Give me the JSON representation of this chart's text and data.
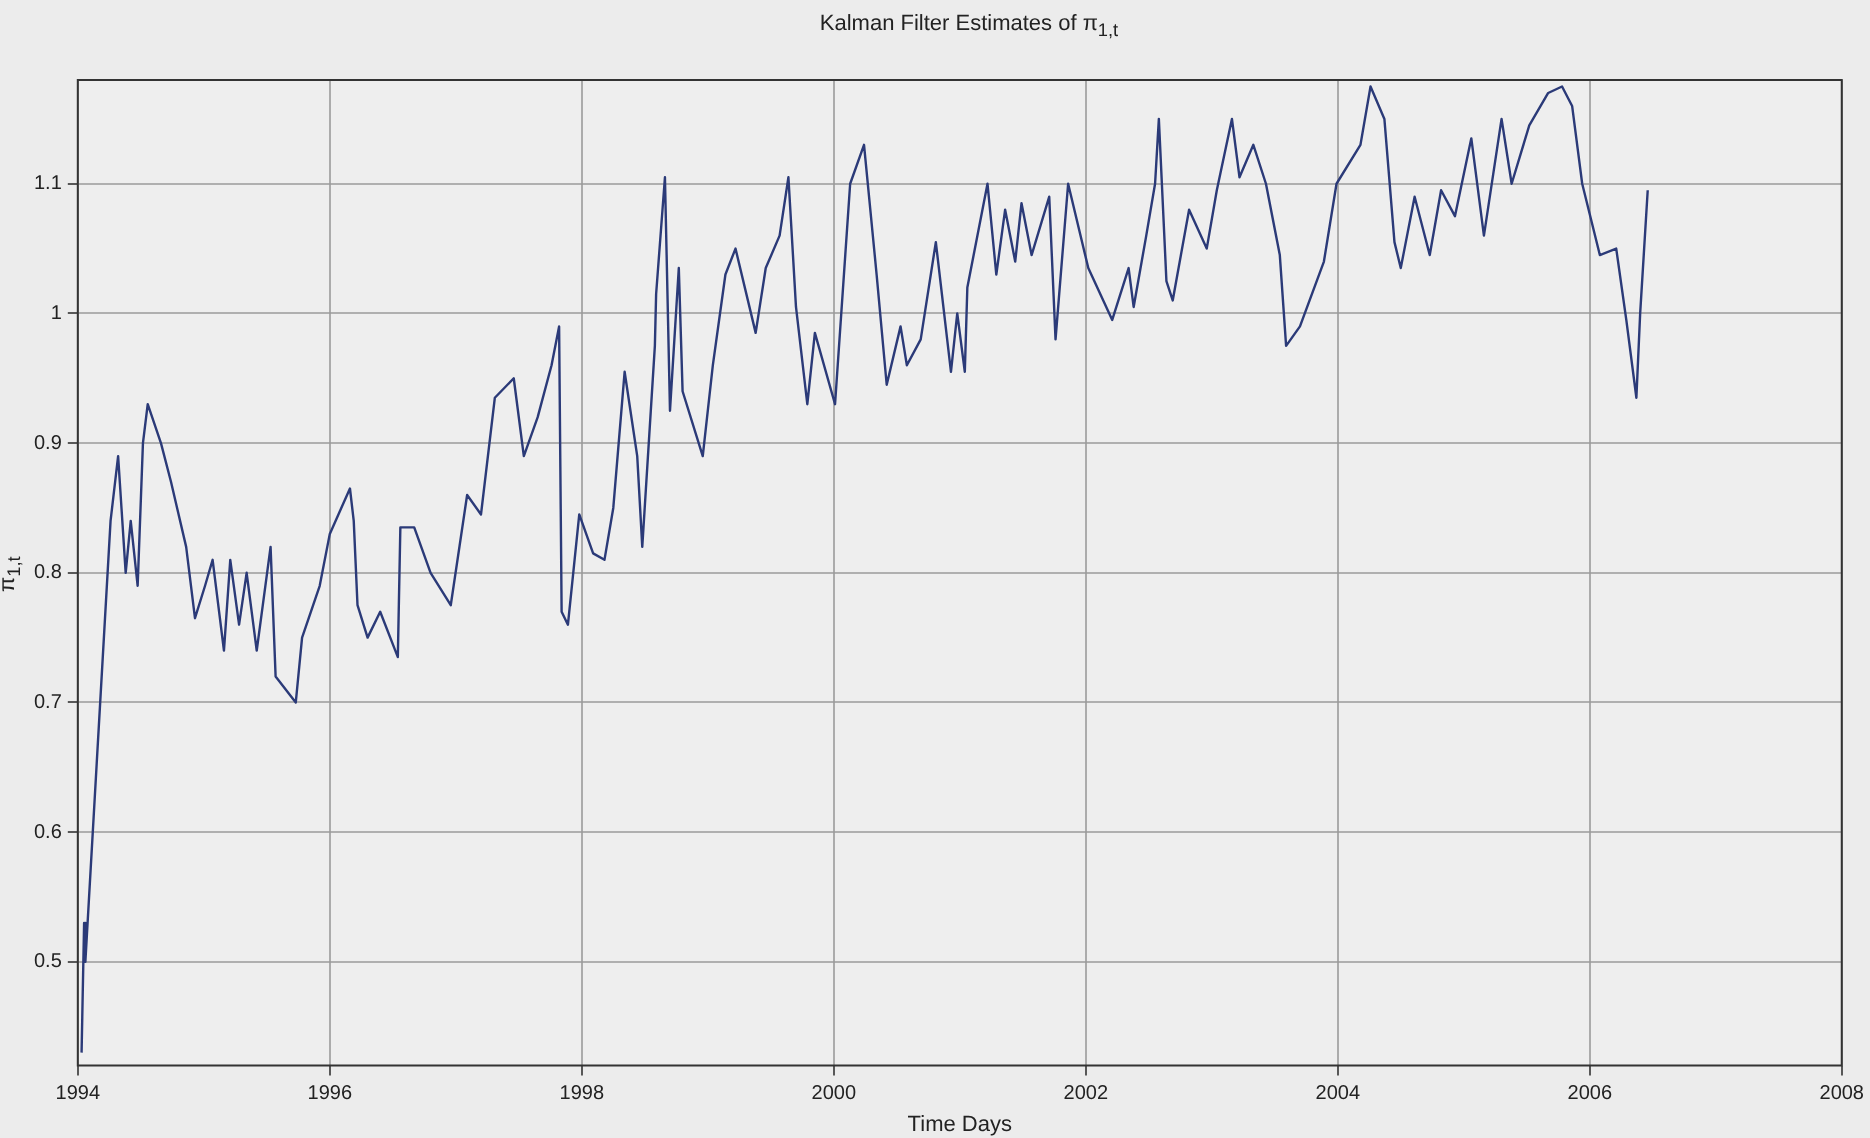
{
  "chart_data": {
    "type": "line",
    "title": "Kalman Filter Estimates of π$_{1,t}$",
    "xlabel": "Time Days",
    "ylabel": "π$_{1,t}$",
    "xlim": [
      1994,
      2008
    ],
    "xticks": [
      1994,
      1996,
      1998,
      2000,
      2002,
      2004,
      2006,
      2008
    ],
    "ylim": [
      0.42,
      1.18
    ],
    "yticks": [
      0.5,
      0.6,
      0.7,
      0.8,
      0.9,
      1,
      1.1
    ],
    "grid": true,
    "marker": "none",
    "line_style": "solid",
    "series": [
      {
        "color": "#2b3a78",
        "x": [
          1994.03,
          1994.05,
          1994.06,
          1994.26,
          1994.32,
          1994.38,
          1994.42,
          1994.475,
          1994.517,
          1994.555,
          1994.66,
          1994.74,
          1994.86,
          1994.93,
          1995.01,
          1995.07,
          1995.16,
          1995.21,
          1995.28,
          1995.34,
          1995.42,
          1995.53,
          1995.57,
          1995.73,
          1995.78,
          1995.92,
          1996.0,
          1996.16,
          1996.19,
          1996.22,
          1996.3,
          1996.4,
          1996.54,
          1996.56,
          1996.67,
          1996.8,
          1996.96,
          1997.09,
          1997.2,
          1997.31,
          1997.46,
          1997.54,
          1997.65,
          1997.76,
          1997.82,
          1997.84,
          1997.89,
          1997.98,
          1998.09,
          1998.18,
          1998.25,
          1998.34,
          1998.44,
          1998.48,
          1998.58,
          1998.59,
          1998.66,
          1998.7,
          1998.77,
          1998.8,
          1998.96,
          1999.04,
          1999.14,
          1999.22,
          1999.38,
          1999.46,
          1999.57,
          1999.64,
          1999.7,
          1999.79,
          1999.85,
          2000.01,
          2000.13,
          2000.24,
          2000.34,
          2000.42,
          2000.53,
          2000.58,
          2000.69,
          2000.81,
          2000.93,
          2000.98,
          2001.04,
          2001.06,
          2001.22,
          2001.29,
          2001.36,
          2001.44,
          2001.49,
          2001.57,
          2001.71,
          2001.76,
          2001.86,
          2002.02,
          2002.21,
          2002.34,
          2002.38,
          2002.48,
          2002.55,
          2002.58,
          2002.64,
          2002.69,
          2002.82,
          2002.96,
          2003.04,
          2003.16,
          2003.22,
          2003.33,
          2003.43,
          2003.54,
          2003.59,
          2003.7,
          2003.89,
          2003.99,
          2004.18,
          2004.26,
          2004.37,
          2004.45,
          2004.5,
          2004.61,
          2004.73,
          2004.82,
          2004.93,
          2005.06,
          2005.16,
          2005.3,
          2005.38,
          2005.52,
          2005.67,
          2005.78,
          2005.86,
          2005.94,
          2006.08,
          2006.21,
          2006.29,
          2006.37,
          2006.4,
          2006.46
        ],
        "values": [
          0.43,
          0.53,
          0.5,
          0.84,
          0.89,
          0.8,
          0.84,
          0.79,
          0.9,
          0.93,
          0.9,
          0.87,
          0.82,
          0.765,
          0.79,
          0.81,
          0.74,
          0.81,
          0.76,
          0.8,
          0.74,
          0.82,
          0.72,
          0.7,
          0.75,
          0.79,
          0.83,
          0.865,
          0.84,
          0.775,
          0.75,
          0.77,
          0.735,
          0.835,
          0.835,
          0.8,
          0.775,
          0.86,
          0.845,
          0.935,
          0.95,
          0.89,
          0.92,
          0.96,
          0.99,
          0.77,
          0.76,
          0.845,
          0.815,
          0.81,
          0.85,
          0.955,
          0.89,
          0.82,
          0.975,
          1.015,
          1.105,
          0.925,
          1.035,
          0.94,
          0.89,
          0.96,
          1.03,
          1.05,
          0.985,
          1.035,
          1.06,
          1.105,
          1.005,
          0.93,
          0.985,
          0.93,
          1.1,
          1.13,
          1.03,
          0.945,
          0.99,
          0.96,
          0.98,
          1.055,
          0.955,
          1.0,
          0.955,
          1.02,
          1.1,
          1.03,
          1.08,
          1.04,
          1.085,
          1.045,
          1.09,
          0.98,
          1.1,
          1.035,
          0.995,
          1.035,
          1.005,
          1.06,
          1.1,
          1.15,
          1.025,
          1.01,
          1.08,
          1.05,
          1.095,
          1.15,
          1.105,
          1.13,
          1.1,
          1.045,
          0.975,
          0.99,
          1.04,
          1.1,
          1.13,
          1.175,
          1.15,
          1.055,
          1.035,
          1.09,
          1.045,
          1.095,
          1.075,
          1.135,
          1.06,
          1.15,
          1.1,
          1.145,
          1.17,
          1.175,
          1.16,
          1.1,
          1.045,
          1.05,
          0.995,
          0.935,
          1.0,
          1.095
        ]
      }
    ]
  }
}
